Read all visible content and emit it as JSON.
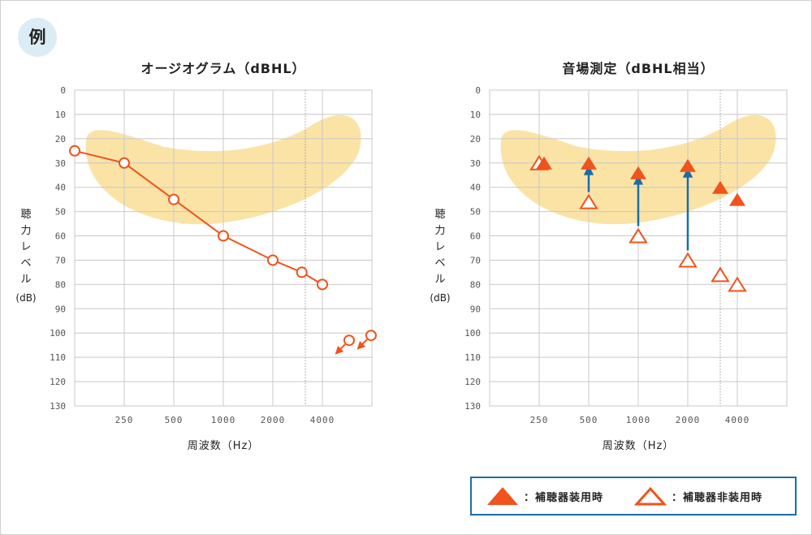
{
  "badge": "例",
  "colors": {
    "grid": "#c8c8c8",
    "blob": "#fbe3a6",
    "series": "#f0531c",
    "arrow_blue": "#1a6ea8",
    "axis_text": "#555555",
    "title_text": "#222222"
  },
  "y_axis_label_lines": [
    "聴",
    "力",
    "レ",
    "ベ",
    "ル",
    "(dB)"
  ],
  "legend": {
    "aided_label": "：補聴器装用時",
    "unaided_label": "：補聴器非装用時"
  },
  "chart_data": [
    {
      "type": "line",
      "title": "オージオグラム（dBHL）",
      "xlabel": "周波数（Hz）",
      "ylabel": "聴力レベル（dB）",
      "x_tick_labels": [
        "250",
        "500",
        "1000",
        "2000",
        "4000"
      ],
      "y_ticks": [
        0,
        10,
        20,
        30,
        40,
        50,
        60,
        70,
        80,
        90,
        100,
        110,
        120,
        130
      ],
      "ylim": [
        0,
        130
      ],
      "y_inverted": true,
      "grid": true,
      "highlight_region": "speech banana",
      "dotted_reference_frequency": 3000,
      "series": [
        {
          "marker": "open-circle",
          "x": [
            125,
            250,
            500,
            1000,
            2000,
            3000,
            4000
          ],
          "y": [
            25,
            30,
            45,
            60,
            70,
            75,
            80
          ]
        }
      ],
      "scale_out_points": [
        {
          "marker": "open-circle-with-arrow",
          "x": 6000,
          "y": 103
        },
        {
          "marker": "open-circle-with-arrow",
          "x": 8000,
          "y": 101
        }
      ]
    },
    {
      "type": "scatter",
      "title": "音場測定（dBHL相当）",
      "xlabel": "周波数（Hz）",
      "ylabel": "聴力レベル（dB）",
      "x_tick_labels": [
        "250",
        "500",
        "1000",
        "2000",
        "4000"
      ],
      "y_ticks": [
        0,
        10,
        20,
        30,
        40,
        50,
        60,
        70,
        80,
        90,
        100,
        110,
        120,
        130
      ],
      "ylim": [
        0,
        130
      ],
      "y_inverted": true,
      "grid": true,
      "highlight_region": "speech banana",
      "dotted_reference_frequency": 3000,
      "series": [
        {
          "legend_ref": "aided",
          "marker": "filled-triangle",
          "x": [
            250,
            500,
            1000,
            2000,
            3000,
            4000
          ],
          "y": [
            30,
            30,
            34,
            31,
            40,
            45
          ]
        },
        {
          "legend_ref": "unaided",
          "marker": "open-triangle",
          "x": [
            250,
            500,
            1000,
            2000,
            3000,
            4000
          ],
          "y": [
            30,
            46,
            60,
            70,
            76,
            80
          ]
        }
      ],
      "improvement_arrows": [
        {
          "x": 500,
          "from": 46,
          "to": 30
        },
        {
          "x": 1000,
          "from": 60,
          "to": 34
        },
        {
          "x": 2000,
          "from": 70,
          "to": 31
        }
      ]
    }
  ]
}
